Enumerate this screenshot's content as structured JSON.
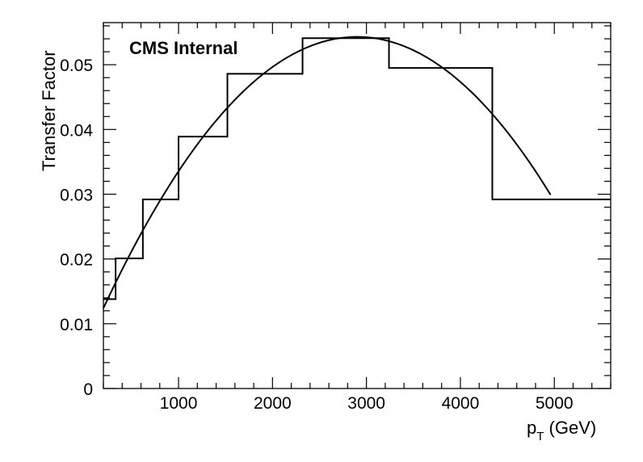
{
  "chart_data": {
    "type": "step-histogram-with-fit",
    "title": "",
    "annotation": "CMS Internal",
    "xlabel_main": "p",
    "xlabel_sub": "T",
    "xlabel_unit": " (GeV)",
    "ylabel": "Transfer Factor",
    "xlim": [
      200,
      5600
    ],
    "ylim": [
      0,
      0.0565
    ],
    "x_ticks": [
      1000,
      2000,
      3000,
      4000,
      5000
    ],
    "x_tick_labels": [
      "1000",
      "2000",
      "3000",
      "4000",
      "5000"
    ],
    "y_ticks": [
      0,
      0.01,
      0.02,
      0.03,
      0.04,
      0.05
    ],
    "y_tick_labels": [
      "0",
      "0.01",
      "0.02",
      "0.03",
      "0.04",
      "0.05"
    ],
    "series": [
      {
        "name": "histogram",
        "bin_edges": [
          200,
          330,
          620,
          1000,
          1520,
          2320,
          3240,
          4340,
          5600
        ],
        "values": [
          0.0138,
          0.0201,
          0.0292,
          0.0389,
          0.0486,
          0.0541,
          0.0495,
          0.0292
        ]
      },
      {
        "name": "fit",
        "function": "parabola",
        "peak_x": 2900,
        "peak_y": 0.0543,
        "x_range": [
          200,
          4960
        ],
        "points": [
          [
            200,
            0.0124
          ],
          [
            500,
            0.0215
          ],
          [
            1000,
            0.0335
          ],
          [
            1500,
            0.0433
          ],
          [
            2000,
            0.0495
          ],
          [
            2500,
            0.0535
          ],
          [
            2900,
            0.0543
          ],
          [
            3500,
            0.0523
          ],
          [
            4000,
            0.0463
          ],
          [
            4500,
            0.0372
          ],
          [
            4960,
            0.0292
          ]
        ]
      }
    ],
    "grid": false,
    "legend": "none"
  }
}
